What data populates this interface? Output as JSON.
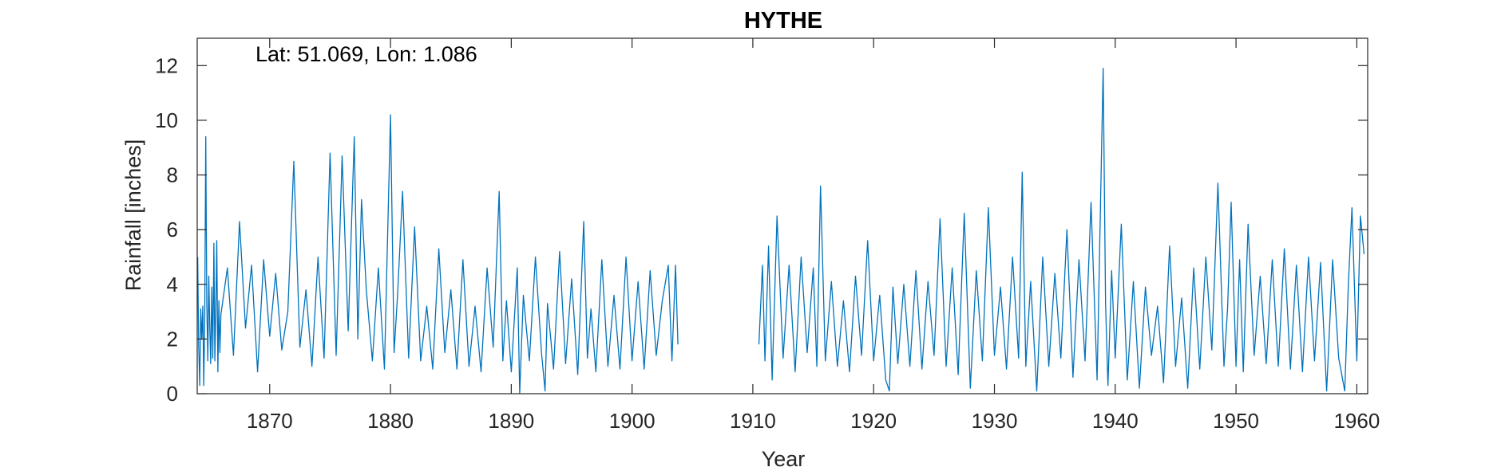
{
  "chart_data": {
    "type": "line",
    "title": "HYTHE",
    "annotation": "Lat: 51.069, Lon: 1.086",
    "xlabel": "Year",
    "ylabel": "Rainfall [inches]",
    "xlim": [
      1864,
      1960.9
    ],
    "ylim": [
      0,
      13
    ],
    "xticks": [
      1870,
      1880,
      1890,
      1900,
      1910,
      1920,
      1930,
      1940,
      1950,
      1960
    ],
    "yticks": [
      0,
      2,
      4,
      6,
      8,
      10,
      12
    ],
    "grid": false,
    "line_color": "#0072BD",
    "axis_color": "#262626",
    "series": [
      {
        "x": [
          1864.04,
          1864.12,
          1864.21,
          1864.29,
          1864.38,
          1864.46,
          1864.54,
          1864.62,
          1864.71,
          1864.79,
          1864.88,
          1864.96,
          1865.04,
          1865.12,
          1865.21,
          1865.29,
          1865.38,
          1865.46,
          1865.54,
          1865.62,
          1865.71,
          1865.79,
          1865.88,
          1865.96,
          1866.5,
          1867.0,
          1867.5,
          1868.0,
          1868.5,
          1869.0,
          1869.5,
          1870.0,
          1870.5,
          1871.0,
          1871.5,
          1872.0,
          1872.5,
          1873.0,
          1873.5,
          1874.0,
          1874.5,
          1875.0,
          1875.5,
          1876.0,
          1876.5,
          1877.0,
          1877.3,
          1877.6,
          1878.0,
          1878.5,
          1879.0,
          1879.5,
          1880.0,
          1880.3,
          1880.6,
          1881.0,
          1881.5,
          1882.0,
          1882.5,
          1883.0,
          1883.5,
          1884.0,
          1884.5,
          1885.0,
          1885.5,
          1886.0,
          1886.5,
          1887.0,
          1887.5,
          1888.0,
          1888.5,
          1889.0,
          1889.3,
          1889.6,
          1890.0,
          1890.5,
          1890.7,
          1891.0,
          1891.5,
          1892.0,
          1892.5,
          1892.8,
          1893.0,
          1893.5,
          1894.0,
          1894.5,
          1895.0,
          1895.5,
          1896.0,
          1896.3,
          1896.6,
          1897.0,
          1897.5,
          1898.0,
          1898.5,
          1899.0,
          1899.5,
          1900.0,
          1900.5,
          1901.0,
          1901.5,
          1902.0,
          1902.5,
          1903.0,
          1903.3,
          1903.6,
          1903.8,
          null,
          1910.5,
          1910.8,
          1911.0,
          1911.3,
          1911.6,
          1912.0,
          1912.5,
          1913.0,
          1913.5,
          1914.0,
          1914.5,
          1915.0,
          1915.3,
          1915.6,
          1916.0,
          1916.5,
          1917.0,
          1917.5,
          1918.0,
          1918.5,
          1919.0,
          1919.5,
          1920.0,
          1920.5,
          1921.0,
          1921.3,
          1921.6,
          1922.0,
          1922.5,
          1923.0,
          1923.5,
          1924.0,
          1924.5,
          1925.0,
          1925.5,
          1926.0,
          1926.5,
          1927.0,
          1927.5,
          1928.0,
          1928.5,
          1929.0,
          1929.5,
          1930.0,
          1930.5,
          1931.0,
          1931.5,
          1932.0,
          1932.3,
          1932.6,
          1933.0,
          1933.5,
          1934.0,
          1934.5,
          1935.0,
          1935.5,
          1936.0,
          1936.5,
          1937.0,
          1937.5,
          1938.0,
          1938.5,
          1939.0,
          1939.2,
          1939.4,
          1939.7,
          1940.0,
          1940.5,
          1941.0,
          1941.5,
          1942.0,
          1942.5,
          1943.0,
          1943.5,
          1944.0,
          1944.5,
          1945.0,
          1945.5,
          1946.0,
          1946.5,
          1947.0,
          1947.5,
          1948.0,
          1948.5,
          1949.0,
          1949.3,
          1949.6,
          1950.0,
          1950.3,
          1950.6,
          1951.0,
          1951.5,
          1952.0,
          1952.5,
          1953.0,
          1953.5,
          1954.0,
          1954.5,
          1955.0,
          1955.5,
          1956.0,
          1956.5,
          1957.0,
          1957.5,
          1958.0,
          1958.5,
          1959.0,
          1959.3,
          1959.6,
          1960.0,
          1960.3,
          1960.6
        ],
        "y": [
          5.0,
          1.8,
          0.3,
          3.1,
          2.0,
          3.2,
          0.3,
          2.6,
          9.4,
          3.3,
          1.2,
          4.3,
          2.5,
          1.1,
          3.9,
          1.3,
          5.5,
          1.2,
          3.1,
          5.6,
          0.8,
          3.4,
          1.5,
          2.9,
          4.6,
          1.4,
          6.3,
          2.4,
          4.7,
          0.8,
          4.9,
          2.1,
          4.4,
          1.6,
          3.0,
          8.5,
          1.7,
          3.8,
          1.0,
          5.0,
          1.3,
          8.8,
          1.4,
          8.7,
          2.3,
          9.4,
          2.0,
          7.1,
          3.8,
          1.2,
          4.6,
          0.9,
          10.2,
          1.5,
          3.7,
          7.4,
          1.3,
          6.1,
          1.2,
          3.2,
          0.9,
          5.3,
          1.5,
          3.8,
          0.9,
          4.9,
          1.0,
          3.2,
          0.8,
          4.6,
          1.7,
          7.4,
          1.2,
          3.4,
          0.8,
          4.6,
          0.0,
          3.6,
          1.2,
          5.0,
          1.5,
          0.1,
          3.3,
          0.9,
          5.2,
          1.1,
          4.2,
          0.7,
          6.3,
          1.3,
          3.1,
          0.8,
          4.9,
          1.0,
          3.6,
          0.9,
          5.0,
          1.2,
          4.1,
          0.9,
          4.5,
          1.4,
          3.4,
          4.7,
          1.2,
          4.7,
          1.8,
          null,
          1.8,
          4.7,
          1.2,
          5.4,
          0.5,
          6.5,
          1.3,
          4.7,
          0.8,
          5.0,
          1.5,
          4.6,
          1.0,
          7.6,
          1.2,
          4.1,
          1.0,
          3.4,
          0.8,
          4.3,
          1.4,
          5.6,
          1.2,
          3.6,
          0.5,
          0.1,
          3.9,
          1.1,
          4.0,
          1.0,
          4.5,
          0.9,
          4.1,
          1.4,
          6.4,
          1.0,
          4.6,
          0.7,
          6.6,
          0.2,
          4.5,
          1.2,
          6.8,
          1.4,
          3.9,
          0.9,
          5.0,
          1.3,
          8.1,
          1.0,
          4.1,
          0.1,
          5.0,
          1.0,
          4.4,
          1.3,
          6.0,
          0.6,
          4.9,
          1.2,
          7.0,
          0.5,
          11.9,
          3.3,
          0.3,
          4.5,
          1.3,
          6.2,
          0.5,
          4.1,
          0.2,
          3.9,
          1.4,
          3.2,
          0.4,
          5.4,
          1.0,
          3.5,
          0.2,
          4.6,
          0.9,
          5.0,
          1.6,
          7.7,
          1.0,
          3.1,
          7.0,
          1.0,
          4.9,
          0.8,
          6.2,
          1.4,
          4.3,
          1.1,
          4.9,
          1.0,
          5.3,
          0.9,
          4.7,
          0.8,
          5.0,
          1.2,
          4.8,
          0.1,
          4.9,
          1.3,
          0.1,
          4.0,
          6.8,
          1.2,
          6.5,
          5.1
        ]
      }
    ]
  }
}
